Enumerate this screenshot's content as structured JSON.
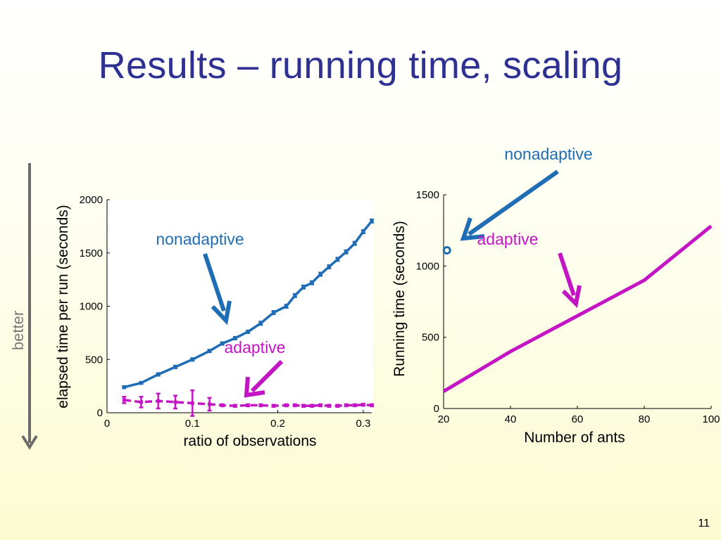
{
  "slide": {
    "title": "Results – running time, scaling",
    "page_number": "11",
    "better_label": "better"
  },
  "colors": {
    "title": "#2e3192",
    "nonadaptive": "#1f6db5",
    "adaptive": "#c415c4",
    "arrow": "#6b6b6b"
  },
  "chart_data": [
    {
      "type": "line",
      "xlabel": "ratio of observations",
      "ylabel": "elapsed time per run (seconds)",
      "xlim": [
        0,
        0.31
      ],
      "ylim": [
        0,
        2000
      ],
      "x_ticks": [
        0,
        0.1,
        0.2,
        0.3
      ],
      "x_tick_labels": [
        "0",
        "0.1",
        "0.2",
        "0.3"
      ],
      "y_ticks": [
        0,
        500,
        1000,
        1500,
        2000
      ],
      "y_tick_labels": [
        "0",
        "500",
        "1000",
        "1500",
        "2000"
      ],
      "grid": false,
      "series": [
        {
          "name": "nonadaptive",
          "color": "#1f6db5",
          "style": "solid",
          "x": [
            0.02,
            0.04,
            0.06,
            0.08,
            0.1,
            0.12,
            0.135,
            0.15,
            0.165,
            0.18,
            0.195,
            0.21,
            0.22,
            0.23,
            0.24,
            0.25,
            0.26,
            0.27,
            0.28,
            0.29,
            0.3,
            0.31
          ],
          "values": [
            240,
            280,
            360,
            430,
            500,
            580,
            650,
            700,
            760,
            840,
            940,
            1000,
            1100,
            1180,
            1220,
            1300,
            1370,
            1440,
            1510,
            1590,
            1700,
            1800
          ],
          "error": [
            10,
            10,
            12,
            12,
            12,
            12,
            12,
            12,
            12,
            15,
            15,
            15,
            15,
            15,
            15,
            15,
            15,
            15,
            15,
            15,
            15,
            15
          ]
        },
        {
          "name": "adaptive",
          "color": "#c415c4",
          "style": "dashed",
          "x": [
            0.02,
            0.04,
            0.06,
            0.08,
            0.1,
            0.12,
            0.135,
            0.15,
            0.165,
            0.18,
            0.195,
            0.21,
            0.22,
            0.23,
            0.24,
            0.25,
            0.26,
            0.27,
            0.28,
            0.29,
            0.3,
            0.31
          ],
          "values": [
            120,
            100,
            110,
            100,
            90,
            80,
            70,
            65,
            70,
            70,
            65,
            70,
            70,
            65,
            65,
            70,
            65,
            65,
            70,
            70,
            75,
            70
          ],
          "error": [
            30,
            50,
            70,
            60,
            120,
            60,
            10,
            10,
            10,
            10,
            10,
            10,
            10,
            10,
            10,
            10,
            10,
            10,
            10,
            10,
            10,
            10
          ]
        }
      ],
      "annotations": [
        "nonadaptive",
        "adaptive"
      ]
    },
    {
      "type": "line",
      "xlabel": "Number of ants",
      "ylabel": "Running time (seconds)",
      "xlim": [
        20,
        100
      ],
      "ylim": [
        0,
        1500
      ],
      "x_ticks": [
        20,
        40,
        60,
        80,
        100
      ],
      "x_tick_labels": [
        "20",
        "40",
        "60",
        "80",
        "100"
      ],
      "y_ticks": [
        0,
        500,
        1000,
        1500
      ],
      "y_tick_labels": [
        "0",
        "500",
        "1000",
        "1500"
      ],
      "grid": false,
      "series": [
        {
          "name": "nonadaptive",
          "color": "#1f6db5",
          "style": "marker",
          "x": [
            21
          ],
          "values": [
            1110
          ]
        },
        {
          "name": "adaptive",
          "color": "#c415c4",
          "style": "solid",
          "x": [
            20,
            40,
            60,
            80,
            100
          ],
          "values": [
            120,
            400,
            650,
            900,
            1280
          ]
        }
      ],
      "annotations": [
        "nonadaptive",
        "adaptive"
      ]
    }
  ]
}
